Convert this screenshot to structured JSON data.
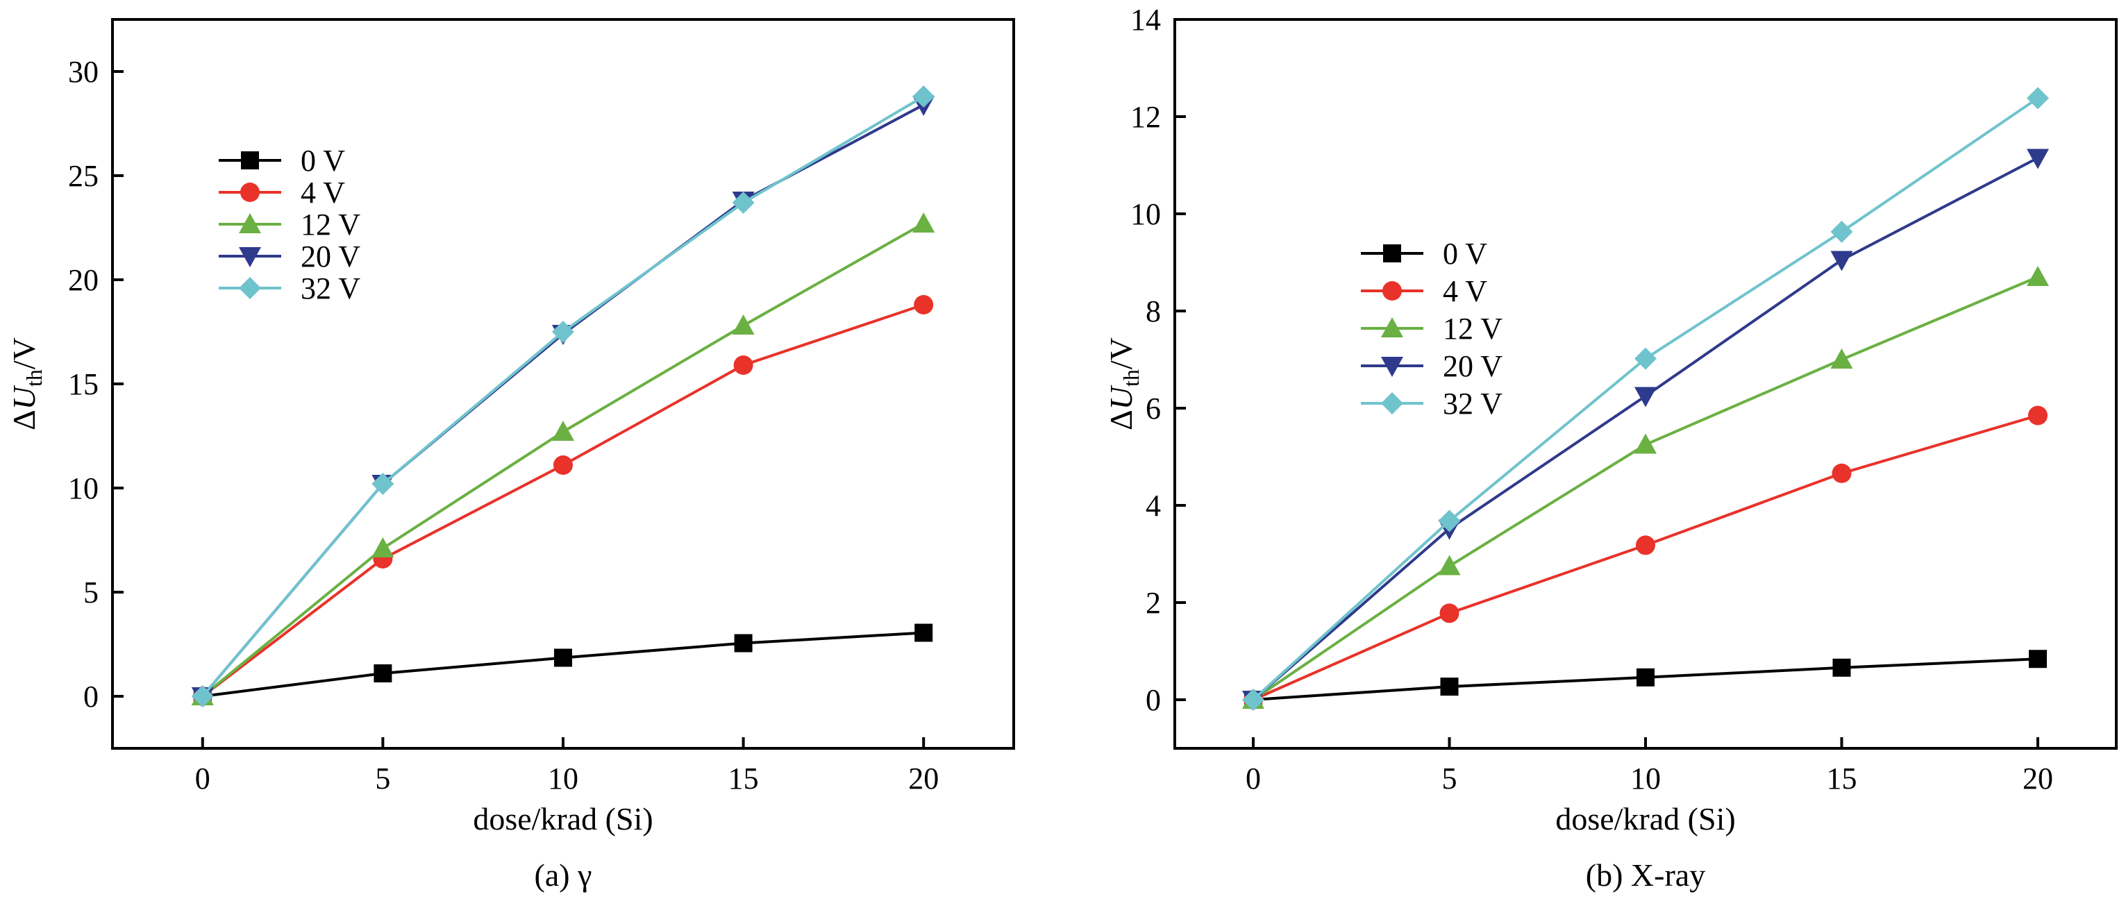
{
  "chart_data": [
    {
      "type": "line",
      "caption": "(a) γ",
      "xlabel": "dose/krad (Si)",
      "ylabel": {
        "prefix": "ΔU",
        "sub": "th",
        "suffix": "/V"
      },
      "x": [
        0,
        5,
        10,
        15,
        20
      ],
      "xlim": [
        -2.5,
        22.5
      ],
      "ylim": [
        -2.5,
        32.5
      ],
      "xticks": [
        0,
        5,
        10,
        15,
        20
      ],
      "yticks": [
        0,
        5,
        10,
        15,
        20,
        25,
        30
      ],
      "legend_position": "upper-left",
      "series": [
        {
          "name": "0 V",
          "marker": "square",
          "color": "#000000",
          "values": [
            0,
            1.1,
            1.85,
            2.55,
            3.05
          ]
        },
        {
          "name": "4 V",
          "marker": "circle",
          "color": "#e8322a",
          "values": [
            0,
            6.6,
            11.1,
            15.9,
            18.8
          ]
        },
        {
          "name": "12 V",
          "marker": "triangle-up",
          "color": "#6ab042",
          "values": [
            0,
            7.1,
            12.7,
            17.8,
            22.7
          ]
        },
        {
          "name": "20 V",
          "marker": "triangle-down",
          "color": "#2e3a8c",
          "values": [
            0,
            10.2,
            17.4,
            23.8,
            28.4
          ]
        },
        {
          "name": "32 V",
          "marker": "diamond",
          "color": "#6fc3cd",
          "values": [
            0,
            10.2,
            17.5,
            23.7,
            28.8
          ]
        }
      ]
    },
    {
      "type": "line",
      "caption": "(b) X-ray",
      "xlabel": "dose/krad (Si)",
      "ylabel": {
        "prefix": "ΔU",
        "sub": "th",
        "suffix": "/V"
      },
      "x": [
        0,
        5,
        10,
        15,
        20
      ],
      "xlim": [
        -2.0,
        22.0
      ],
      "ylim": [
        -1.0,
        14.0
      ],
      "xticks": [
        0,
        5,
        10,
        15,
        20
      ],
      "yticks": [
        0,
        2,
        4,
        6,
        8,
        10,
        12,
        14
      ],
      "legend_position": "center-left",
      "series": [
        {
          "name": "0 V",
          "marker": "square",
          "color": "#000000",
          "values": [
            0,
            0.27,
            0.46,
            0.66,
            0.84
          ]
        },
        {
          "name": "4 V",
          "marker": "circle",
          "color": "#e8322a",
          "values": [
            0,
            1.78,
            3.18,
            4.66,
            5.85
          ]
        },
        {
          "name": "12 V",
          "marker": "triangle-up",
          "color": "#6ab042",
          "values": [
            0,
            2.75,
            5.25,
            7.0,
            8.7
          ]
        },
        {
          "name": "20 V",
          "marker": "triangle-down",
          "color": "#2e3a8c",
          "values": [
            0,
            3.52,
            6.25,
            9.05,
            11.15
          ]
        },
        {
          "name": "32 V",
          "marker": "diamond",
          "color": "#6fc3cd",
          "values": [
            0,
            3.68,
            7.02,
            9.63,
            12.38
          ]
        }
      ]
    }
  ]
}
